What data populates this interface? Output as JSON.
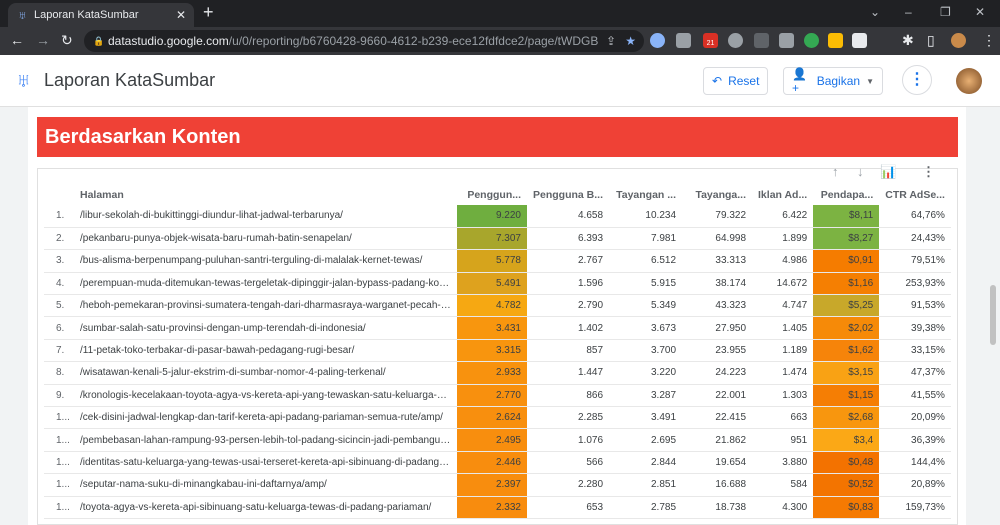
{
  "browser": {
    "tab_title": "Laporan KataSumbar",
    "url_host": "datastudio.google.com",
    "url_path": "/u/0/reporting/b6760428-9660-4612-b239-ece12fdfdce2/page/tWDGB",
    "badge": "21"
  },
  "app": {
    "title": "Laporan KataSumbar",
    "reset_label": "Reset",
    "share_label": "Bagikan"
  },
  "section": {
    "title": "Berdasarkan Konten"
  },
  "table": {
    "headers": [
      "Halaman",
      "Penggun...",
      "Pengguna B...",
      "Tayangan ...",
      "Tayanga...",
      "Iklan Ad...",
      "Pendapa...",
      "CTR AdSe..."
    ],
    "rows": [
      {
        "n": "1.",
        "path": "/libur-sekolah-di-bukittinggi-diundur-lihat-jadwal-terbarunya/",
        "v": [
          "9.220",
          "4.658",
          "10.234",
          "79.322",
          "6.422",
          "$8,11",
          "64,76%"
        ],
        "c1": "#6fae3f",
        "c6": "#7cb342"
      },
      {
        "n": "2.",
        "path": "/pekanbaru-punya-objek-wisata-baru-rumah-batin-senapelan/",
        "v": [
          "7.307",
          "6.393",
          "7.981",
          "64.998",
          "1.899",
          "$8,27",
          "24,43%"
        ],
        "c1": "#a8a62c",
        "c6": "#7cb342"
      },
      {
        "n": "3.",
        "path": "/bus-alisma-berpenumpang-puluhan-santri-terguling-di-malalak-kernet-tewas/",
        "v": [
          "5.778",
          "2.767",
          "6.512",
          "33.313",
          "4.986",
          "$0,91",
          "79,51%"
        ],
        "c1": "#d6a41c",
        "c6": "#f57c00"
      },
      {
        "n": "4.",
        "path": "/perempuan-muda-ditemukan-tewas-tergeletak-dipinggir-jalan-bypass-padang-kondisin...",
        "v": [
          "5.491",
          "1.596",
          "5.915",
          "38.174",
          "14.672",
          "$1,16",
          "253,93%"
        ],
        "c1": "#dea21e",
        "c6": "#f57f02"
      },
      {
        "n": "5.",
        "path": "/heboh-pemekaran-provinsi-sumatera-tengah-dari-dharmasraya-warganet-pecah-suara/",
        "v": [
          "4.782",
          "2.790",
          "5.349",
          "43.323",
          "4.747",
          "$5,25",
          "91,53%"
        ],
        "c1": "#f6a812",
        "c6": "#c8a82a"
      },
      {
        "n": "6.",
        "path": "/sumbar-salah-satu-provinsi-dengan-ump-terendah-di-indonesia/",
        "v": [
          "3.431",
          "1.402",
          "3.673",
          "27.950",
          "1.405",
          "$2,02",
          "39,38%"
        ],
        "c1": "#f8960e",
        "c6": "#f68a08"
      },
      {
        "n": "7.",
        "path": "/11-petak-toko-terbakar-di-pasar-bawah-pedagang-rugi-besar/",
        "v": [
          "3.315",
          "857",
          "3.700",
          "23.955",
          "1.189",
          "$1,62",
          "33,15%"
        ],
        "c1": "#f8950e",
        "c6": "#f6840a"
      },
      {
        "n": "8.",
        "path": "/wisatawan-kenali-5-jalur-ekstrim-di-sumbar-nomor-4-paling-terkenal/",
        "v": [
          "2.933",
          "1.447",
          "3.220",
          "24.223",
          "1.474",
          "$3,15",
          "47,37%"
        ],
        "c1": "#f8920e",
        "c6": "#f9a214"
      },
      {
        "n": "9.",
        "path": "/kronologis-kecelakaan-toyota-agya-vs-kereta-api-yang-tewaskan-satu-keluarga-di-pada...",
        "v": [
          "2.770",
          "866",
          "3.287",
          "22.001",
          "1.303",
          "$1,15",
          "41,55%"
        ],
        "c1": "#f8900e",
        "c6": "#f57e04"
      },
      {
        "n": "1...",
        "path": "/cek-disini-jadwal-lengkap-dan-tarif-kereta-api-padang-pariaman-semua-rute/amp/",
        "v": [
          "2.624",
          "2.285",
          "3.491",
          "22.415",
          "663",
          "$2,68",
          "20,09%"
        ],
        "c1": "#f88f0e",
        "c6": "#f8960e"
      },
      {
        "n": "1...",
        "path": "/pembebasan-lahan-rampung-93-persen-lebih-tol-padang-sicincin-jadi-pembangunan-to...",
        "v": [
          "2.495",
          "1.076",
          "2.695",
          "21.862",
          "951",
          "$3,4",
          "36,39%"
        ],
        "c1": "#f88e0e",
        "c6": "#fba816"
      },
      {
        "n": "1...",
        "path": "/identitas-satu-keluarga-yang-tewas-usai-terseret-kereta-api-sibinuang-di-padang-paria...",
        "v": [
          "2.446",
          "566",
          "2.844",
          "19.654",
          "3.880",
          "$0,48",
          "144,4%"
        ],
        "c1": "#f88d0e",
        "c6": "#f37200"
      },
      {
        "n": "1...",
        "path": "/seputar-nama-suku-di-minangkabau-ini-daftarnya/amp/",
        "v": [
          "2.397",
          "2.280",
          "2.851",
          "16.688",
          "584",
          "$0,52",
          "20,89%"
        ],
        "c1": "#f88d0e",
        "c6": "#f37400"
      },
      {
        "n": "1...",
        "path": "/toyota-agya-vs-kereta-api-sibinuang-satu-keluarga-tewas-di-padang-pariaman/",
        "v": [
          "2.332",
          "653",
          "2.785",
          "18.738",
          "4.300",
          "$0,83",
          "159,73%"
        ],
        "c1": "#f88c0e",
        "c6": "#f57a02"
      }
    ]
  }
}
